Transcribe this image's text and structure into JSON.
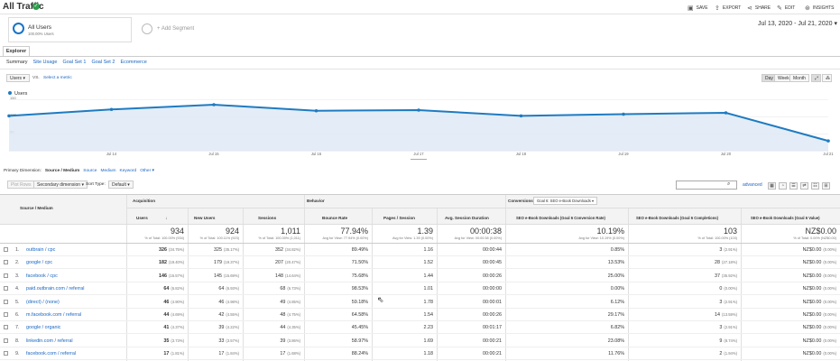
{
  "header": {
    "title": "All Traffic",
    "actions": {
      "save": "SAVE",
      "export": "EXPORT",
      "share": "SHARE",
      "edit": "EDIT",
      "insights": "INSIGHTS"
    }
  },
  "segment": {
    "name": "All Users",
    "sub": "100.00% Users",
    "add": "+ Add Segment"
  },
  "date_range": "Jul 13, 2020 - Jul 21, 2020",
  "explorer_tab": "Explorer",
  "subtabs": [
    "Summary",
    "Site Usage",
    "Goal Set 1",
    "Goal Set 2",
    "Ecommerce"
  ],
  "chart_controls": {
    "metric": "Users",
    "vs": "VS.",
    "select_metric": "Select a metric",
    "day": "Day",
    "week": "Week",
    "month": "Month"
  },
  "chart_data": {
    "type": "line",
    "legend": "Users",
    "x": [
      "Jul 13",
      "Jul 14",
      "Jul 15",
      "Jul 16",
      "Jul 17",
      "Jul 18",
      "Jul 19",
      "Jul 20",
      "Jul 21"
    ],
    "x_labels": [
      "Jul 14",
      "Jul 15",
      "Jul 16",
      "Jul 17",
      "Jul 18",
      "Jul 19",
      "Jul 20",
      "Jul 21"
    ],
    "values": [
      103,
      122,
      136,
      118,
      120,
      103,
      108,
      112,
      29
    ],
    "y_ticks": [
      "150",
      "100",
      "50"
    ],
    "ylim": [
      0,
      160
    ],
    "color": "#1f7bc1"
  },
  "dimension_bar": {
    "label": "Primary Dimension:",
    "current": "Source / Medium",
    "options": [
      "Source",
      "Medium",
      "Keyword",
      "Other ▾"
    ]
  },
  "table_controls": {
    "plot_rows": "Plot Rows",
    "secondary": "Secondary dimension ▾",
    "sort_type_label": "Sort Type:",
    "sort_type": "Default ▾",
    "advanced": "advanced"
  },
  "groups": {
    "acquisition": "Acquisition",
    "behavior": "Behavior",
    "conversions": "Conversions",
    "goal_select": "Goal 6: SEO e-Book Downloads ▾"
  },
  "columns": [
    "Source / Medium",
    "Users",
    "New Users",
    "Sessions",
    "Bounce Rate",
    "Pages / Session",
    "Avg. Session Duration",
    "SEO e-Book Downloads (Goal 6 Conversion Rate)",
    "SEO e-Book Downloads (Goal 6 Completions)",
    "SEO e-Book Downloads (Goal 6 Value)"
  ],
  "totals": {
    "users": "934",
    "users_sub": "% of Total: 100.00% (934)",
    "new_users": "924",
    "new_users_sub": "% of Total: 100.11% (923)",
    "sessions": "1,011",
    "sessions_sub": "% of Total: 100.00% (1,011)",
    "bounce": "77.94%",
    "bounce_sub": "Avg for View: 77.94% (0.00%)",
    "pages": "1.39",
    "pages_sub": "Avg for View: 1.39 (0.00%)",
    "duration": "00:00:38",
    "duration_sub": "Avg for View: 00:00:38 (0.00%)",
    "conv_rate": "10.19%",
    "conv_rate_sub": "Avg for View: 10.19% (0.00%)",
    "completions": "103",
    "completions_sub": "% of Total: 100.00% (103)",
    "value": "NZ$0.00",
    "value_sub": "% of Total: 0.00% (NZ$0.00)"
  },
  "rows": [
    {
      "idx": "1.",
      "source": "outbrain / cpc",
      "users": "326",
      "users_pct": "(34.75%)",
      "new": "325",
      "new_pct": "(35.17%)",
      "sessions": "352",
      "sessions_pct": "(34.82%)",
      "bounce": "89.49%",
      "pages": "1.16",
      "duration": "00:00:44",
      "conv": "0.85%",
      "comp": "3",
      "comp_pct": "(2.91%)",
      "value": "NZ$0.00",
      "value_pct": "(0.00%)"
    },
    {
      "idx": "2.",
      "source": "google / cpc",
      "users": "182",
      "users_pct": "(19.40%)",
      "new": "179",
      "new_pct": "(19.37%)",
      "sessions": "207",
      "sessions_pct": "(20.47%)",
      "bounce": "71.50%",
      "pages": "1.52",
      "duration": "00:00:45",
      "conv": "13.53%",
      "comp": "28",
      "comp_pct": "(27.18%)",
      "value": "NZ$0.00",
      "value_pct": "(0.00%)"
    },
    {
      "idx": "3.",
      "source": "facebook / cpc",
      "users": "146",
      "users_pct": "(15.57%)",
      "new": "145",
      "new_pct": "(15.69%)",
      "sessions": "148",
      "sessions_pct": "(14.64%)",
      "bounce": "75.68%",
      "pages": "1.44",
      "duration": "00:00:26",
      "conv": "25.00%",
      "comp": "37",
      "comp_pct": "(35.92%)",
      "value": "NZ$0.00",
      "value_pct": "(0.00%)"
    },
    {
      "idx": "4.",
      "source": "paid.outbrain.com / referral",
      "users": "64",
      "users_pct": "(6.82%)",
      "new": "64",
      "new_pct": "(6.93%)",
      "sessions": "68",
      "sessions_pct": "(6.73%)",
      "bounce": "98.53%",
      "pages": "1.01",
      "duration": "00:00:00",
      "conv": "0.00%",
      "comp": "0",
      "comp_pct": "(0.00%)",
      "value": "NZ$0.00",
      "value_pct": "(0.00%)"
    },
    {
      "idx": "5.",
      "source": "(direct) / (none)",
      "users": "46",
      "users_pct": "(4.90%)",
      "new": "46",
      "new_pct": "(4.98%)",
      "sessions": "49",
      "sessions_pct": "(4.85%)",
      "bounce": "59.18%",
      "pages": "1.78",
      "duration": "00:00:01",
      "conv": "6.12%",
      "comp": "3",
      "comp_pct": "(2.91%)",
      "value": "NZ$0.00",
      "value_pct": "(0.00%)"
    },
    {
      "idx": "6.",
      "source": "m.facebook.com / referral",
      "users": "44",
      "users_pct": "(4.69%)",
      "new": "42",
      "new_pct": "(4.55%)",
      "sessions": "48",
      "sessions_pct": "(4.75%)",
      "bounce": "64.58%",
      "pages": "1.54",
      "duration": "00:00:26",
      "conv": "29.17%",
      "comp": "14",
      "comp_pct": "(13.59%)",
      "value": "NZ$0.00",
      "value_pct": "(0.00%)"
    },
    {
      "idx": "7.",
      "source": "google / organic",
      "users": "41",
      "users_pct": "(4.37%)",
      "new": "39",
      "new_pct": "(4.22%)",
      "sessions": "44",
      "sessions_pct": "(4.35%)",
      "bounce": "45.45%",
      "pages": "2.23",
      "duration": "00:01:17",
      "conv": "6.82%",
      "comp": "3",
      "comp_pct": "(2.91%)",
      "value": "NZ$0.00",
      "value_pct": "(0.00%)"
    },
    {
      "idx": "8.",
      "source": "linkedin.com / referral",
      "users": "35",
      "users_pct": "(3.73%)",
      "new": "33",
      "new_pct": "(3.57%)",
      "sessions": "39",
      "sessions_pct": "(3.86%)",
      "bounce": "58.97%",
      "pages": "1.69",
      "duration": "00:00:21",
      "conv": "23.08%",
      "comp": "9",
      "comp_pct": "(8.74%)",
      "value": "NZ$0.00",
      "value_pct": "(0.00%)"
    },
    {
      "idx": "9.",
      "source": "facebook.com / referral",
      "users": "17",
      "users_pct": "(1.81%)",
      "new": "17",
      "new_pct": "(1.84%)",
      "sessions": "17",
      "sessions_pct": "(1.68%)",
      "bounce": "88.24%",
      "pages": "1.18",
      "duration": "00:00:21",
      "conv": "11.76%",
      "comp": "2",
      "comp_pct": "(1.94%)",
      "value": "NZ$0.00",
      "value_pct": "(0.00%)"
    }
  ]
}
